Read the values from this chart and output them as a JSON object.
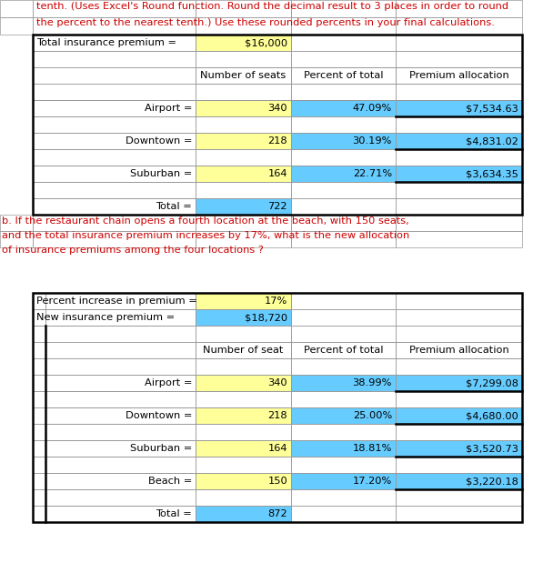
{
  "header_line1": "tenth. (Uses Excel's Round function. Round the decimal result to 3 places in order to round",
  "header_line2": "the percent to the nearest tenth.) Use these rounded percents in your final calculations.",
  "section_b_line1": "b. If the restaurant chain opens a fourth location at the beach, with 150 seats,",
  "section_b_line2": "and the total insurance premium increases by 17%, what is the new allocation",
  "section_b_line3": "of insurance premiums among the four locations ?",
  "color_yellow": "#FFFF99",
  "color_blue": "#66CCFF",
  "color_white": "#FFFFFF",
  "color_red": "#CC0000",
  "color_black": "#000000",
  "color_border": "#999999",
  "table1_total_label": "Total insurance premium =",
  "table1_total_value": "$16,000",
  "table1_col_headers": [
    "Number of seats",
    "Percent of total",
    "Premium allocation"
  ],
  "table1_rows": [
    {
      "label": "Airport =",
      "seats": "340",
      "percent": "47.09%",
      "premium": "$7,534.63"
    },
    {
      "label": "Downtown =",
      "seats": "218",
      "percent": "30.19%",
      "premium": "$4,831.02"
    },
    {
      "label": "Suburban =",
      "seats": "164",
      "percent": "22.71%",
      "premium": "$3,634.35"
    },
    {
      "label": "Total =",
      "seats": "722",
      "percent": "",
      "premium": ""
    }
  ],
  "table2_pct_label": "Percent increase in premium =",
  "table2_pct_value": "17%",
  "table2_new_label": "New insurance premium =",
  "table2_new_value": "$18,720",
  "table2_col_headers": [
    "Number of seat",
    "Percent of total",
    "Premium allocation"
  ],
  "table2_rows": [
    {
      "label": "Airport =",
      "seats": "340",
      "percent": "38.99%",
      "premium": "$7,299.08"
    },
    {
      "label": "Downtown =",
      "seats": "218",
      "percent": "25.00%",
      "premium": "$4,680.00"
    },
    {
      "label": "Suburban =",
      "seats": "164",
      "percent": "18.81%",
      "premium": "$3,520.73"
    },
    {
      "label": "Beach =",
      "seats": "150",
      "percent": "17.20%",
      "premium": "$3,220.18"
    },
    {
      "label": "Total =",
      "seats": "872",
      "percent": "",
      "premium": ""
    }
  ],
  "fig_w": 5.86,
  "fig_h": 6.3,
  "dpi": 100
}
